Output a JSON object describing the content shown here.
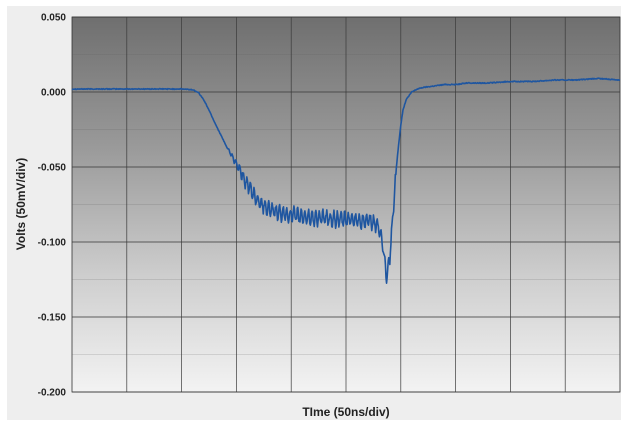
{
  "chart_data": {
    "type": "line",
    "title": "",
    "xlabel": "TIme (50ns/div)",
    "ylabel": "Volts (50mV/div)",
    "ylim": [
      -0.2,
      0.05
    ],
    "xlim": [
      0,
      500
    ],
    "y_ticks": [
      "0.050",
      "0.000",
      "-0.050",
      "-0.100",
      "-0.150",
      "-0.200"
    ],
    "y_tick_values": [
      0.05,
      0.0,
      -0.05,
      -0.1,
      -0.15,
      -0.2
    ],
    "x_divisions": 10,
    "y_minor_divisions": 10,
    "grid": true,
    "legend": "none",
    "series": [
      {
        "color": "#1f56a0",
        "noise_from_x": 140,
        "noise_to_x": 295,
        "noise_amplitude": 0.006,
        "x": [
          0,
          20,
          60,
          100,
          110,
          115,
          120,
          125,
          130,
          140,
          150,
          160,
          170,
          180,
          190,
          200,
          210,
          220,
          230,
          240,
          250,
          260,
          265,
          270,
          275,
          280,
          284,
          287,
          290,
          292,
          294,
          296,
          298,
          300,
          302,
          305,
          310,
          315,
          320,
          330,
          340,
          350,
          360,
          370,
          380,
          400,
          420,
          440,
          460,
          480,
          500
        ],
        "y": [
          0.002,
          0.002,
          0.002,
          0.002,
          0.0015,
          0.0,
          -0.005,
          -0.012,
          -0.02,
          -0.035,
          -0.048,
          -0.062,
          -0.073,
          -0.078,
          -0.081,
          -0.082,
          -0.083,
          -0.084,
          -0.084,
          -0.085,
          -0.085,
          -0.085,
          -0.086,
          -0.086,
          -0.087,
          -0.09,
          -0.105,
          -0.124,
          -0.11,
          -0.09,
          -0.07,
          -0.05,
          -0.035,
          -0.022,
          -0.012,
          -0.005,
          0.0,
          0.002,
          0.003,
          0.004,
          0.005,
          0.005,
          0.006,
          0.006,
          0.006,
          0.007,
          0.007,
          0.008,
          0.008,
          0.009,
          0.008
        ]
      }
    ]
  }
}
